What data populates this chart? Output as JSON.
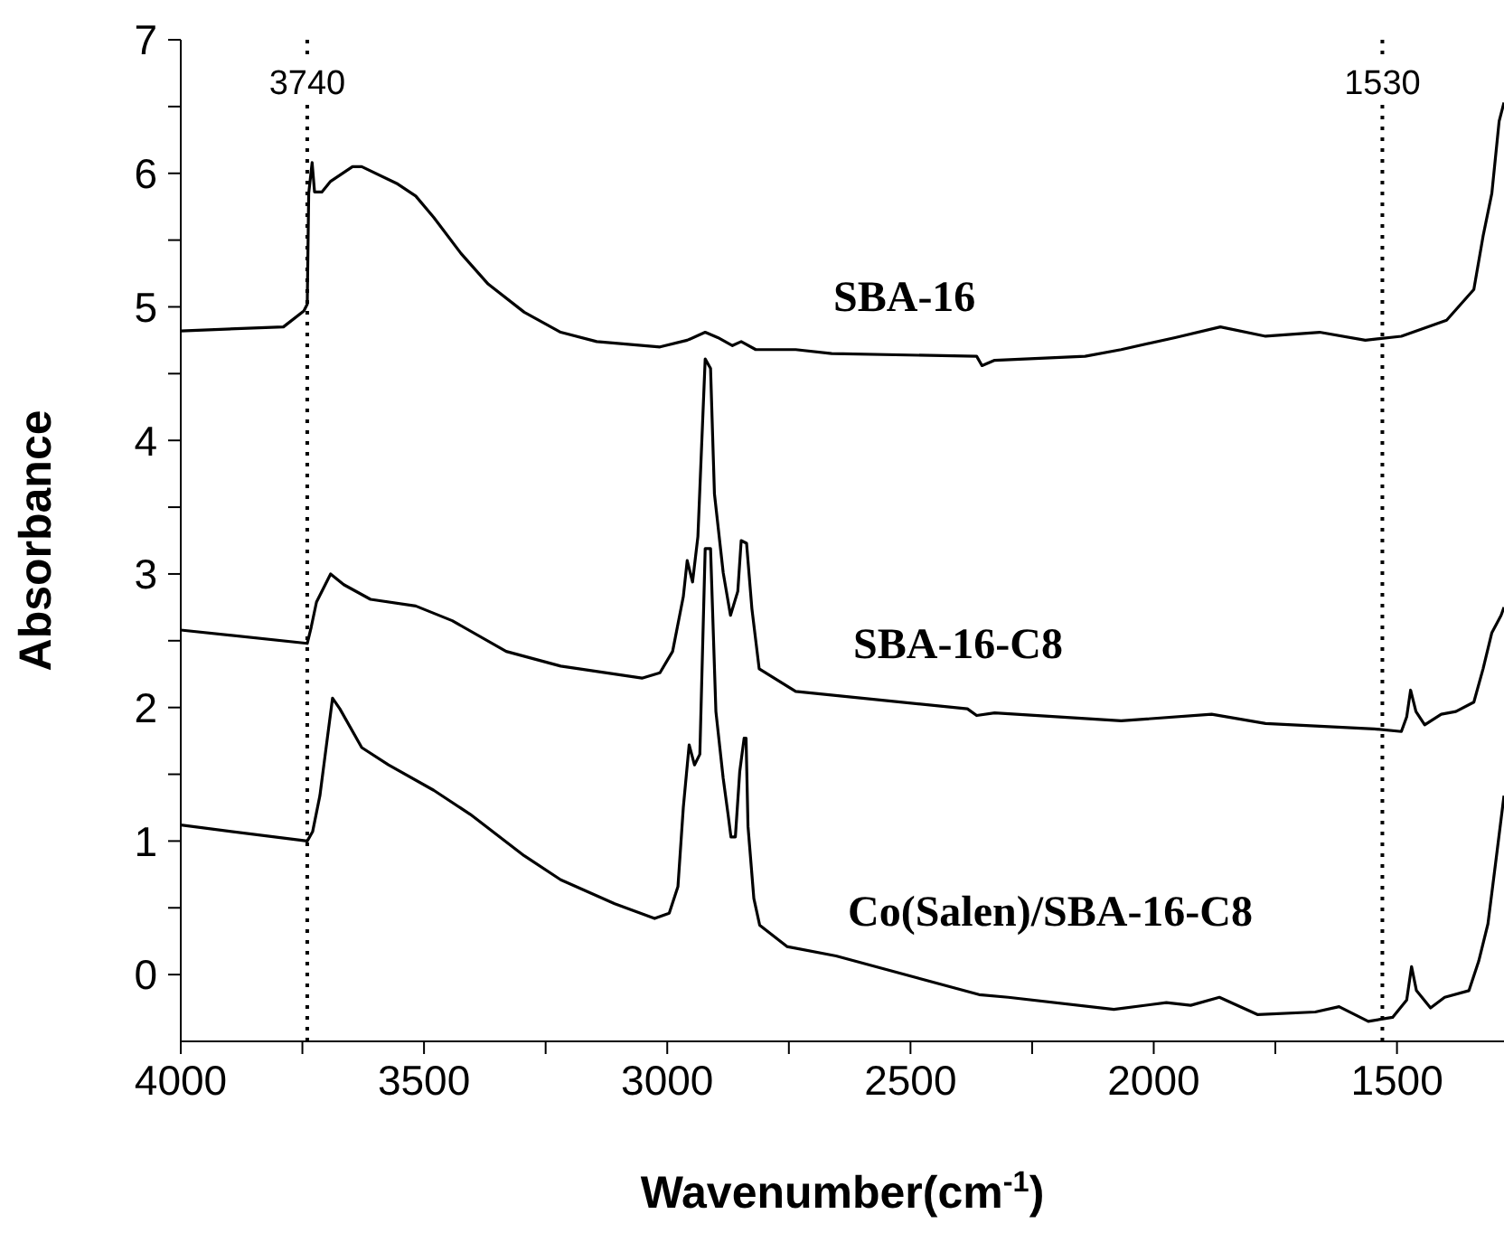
{
  "chart_data": {
    "type": "line",
    "xlabel": "Wavenumber(cm$^{-1}$)",
    "ylabel": "Absorbance",
    "xlim": [
      4000,
      1280
    ],
    "ylim": [
      -0.5,
      7
    ],
    "xticks": [
      4000,
      {
        "value": 3750,
        "label": null
      },
      3500,
      {
        "value": 3250,
        "label": null
      },
      3000,
      {
        "value": 2750,
        "label": null
      },
      2500,
      {
        "value": 2250,
        "label": null
      },
      2000,
      {
        "value": 1750,
        "label": null
      },
      1500
    ],
    "yticks": [
      0,
      {
        "value": 0.5,
        "label": null
      },
      1,
      {
        "value": 1.5,
        "label": null
      },
      2,
      {
        "value": 2.5,
        "label": null
      },
      3,
      {
        "value": 3.5,
        "label": null
      },
      4,
      {
        "value": 4.5,
        "label": null
      },
      5,
      {
        "value": 5.5,
        "label": null
      },
      6,
      {
        "value": 6.5,
        "label": null
      },
      7
    ],
    "line_style": "solid",
    "ref_lines": [
      {
        "axis": "x",
        "value": 3740,
        "label": "3740",
        "line_style": "dotted",
        "color": "#000000"
      },
      {
        "axis": "x",
        "value": 1530,
        "label": "1530",
        "line_style": "dotted",
        "color": "#000000"
      }
    ],
    "series": [
      {
        "name": "SBA-16",
        "color": "#000000",
        "x": [
          4000,
          3789,
          3747,
          3740,
          3737,
          3730,
          3725,
          3710,
          3692,
          3647,
          3628,
          3554,
          3517,
          3480,
          3424,
          3368,
          3294,
          3219,
          3145,
          3015,
          2959,
          2922,
          2896,
          2866,
          2848,
          2818,
          2736,
          2662,
          2364,
          2353,
          2327,
          2141,
          2067,
          1956,
          1863,
          1770,
          1659,
          1565,
          1491,
          1398,
          1342,
          1323,
          1305,
          1290,
          1280
        ],
        "values": [
          4.82,
          4.85,
          4.97,
          5.02,
          5.85,
          6.08,
          5.86,
          5.86,
          5.94,
          6.05,
          6.05,
          5.92,
          5.83,
          5.67,
          5.4,
          5.17,
          4.96,
          4.81,
          4.74,
          4.7,
          4.75,
          4.81,
          4.77,
          4.71,
          4.74,
          4.68,
          4.68,
          4.65,
          4.63,
          4.56,
          4.6,
          4.63,
          4.68,
          4.77,
          4.85,
          4.78,
          4.81,
          4.75,
          4.78,
          4.9,
          5.13,
          5.53,
          5.85,
          6.39,
          6.53
        ]
      },
      {
        "name": "SBA-16-C8",
        "color": "#000000",
        "x": [
          4000,
          3740,
          3732,
          3721,
          3692,
          3665,
          3610,
          3517,
          3442,
          3331,
          3219,
          3052,
          3015,
          2989,
          2967,
          2959,
          2948,
          2937,
          2922,
          2911,
          2903,
          2885,
          2870,
          2855,
          2848,
          2837,
          2826,
          2811,
          2736,
          2383,
          2364,
          2327,
          2067,
          1881,
          1770,
          1547,
          1491,
          1480,
          1472,
          1461,
          1443,
          1409,
          1379,
          1342,
          1323,
          1305,
          1286,
          1280
        ],
        "values": [
          2.58,
          2.48,
          2.6,
          2.79,
          3.0,
          2.92,
          2.81,
          2.76,
          2.65,
          2.42,
          2.31,
          2.22,
          2.26,
          2.42,
          2.83,
          3.1,
          2.94,
          3.28,
          4.61,
          4.54,
          3.6,
          3.01,
          2.69,
          2.87,
          3.25,
          3.23,
          2.74,
          2.29,
          2.12,
          1.99,
          1.94,
          1.96,
          1.9,
          1.95,
          1.88,
          1.84,
          1.82,
          1.93,
          2.13,
          1.97,
          1.87,
          1.95,
          1.97,
          2.04,
          2.29,
          2.56,
          2.69,
          2.75
        ]
      },
      {
        "name": "Co(Salen)/SBA-16-C8",
        "color": "#000000",
        "x": [
          4000,
          3740,
          3729,
          3714,
          3703,
          3688,
          3673,
          3628,
          3573,
          3480,
          3405,
          3294,
          3219,
          3108,
          3026,
          2996,
          2978,
          2967,
          2955,
          2944,
          2933,
          2922,
          2911,
          2900,
          2885,
          2875,
          2869,
          2860,
          2851,
          2842,
          2838,
          2834,
          2822,
          2810,
          2754,
          2653,
          2359,
          2299,
          2082,
          1974,
          1924,
          1865,
          1786,
          1668,
          1619,
          1559,
          1509,
          1480,
          1470,
          1460,
          1431,
          1402,
          1352,
          1332,
          1313,
          1294,
          1280
        ],
        "values": [
          1.12,
          1.0,
          1.07,
          1.34,
          1.65,
          2.07,
          1.99,
          1.7,
          1.57,
          1.38,
          1.2,
          0.89,
          0.71,
          0.53,
          0.42,
          0.46,
          0.66,
          1.25,
          1.72,
          1.57,
          1.65,
          3.19,
          3.19,
          1.97,
          1.47,
          1.2,
          1.03,
          1.03,
          1.52,
          1.77,
          1.77,
          1.11,
          0.57,
          0.37,
          0.21,
          0.14,
          -0.15,
          -0.17,
          -0.26,
          -0.21,
          -0.23,
          -0.17,
          -0.3,
          -0.28,
          -0.24,
          -0.35,
          -0.32,
          -0.19,
          0.06,
          -0.12,
          -0.25,
          -0.17,
          -0.12,
          0.1,
          0.38,
          0.93,
          1.34
        ]
      }
    ]
  }
}
